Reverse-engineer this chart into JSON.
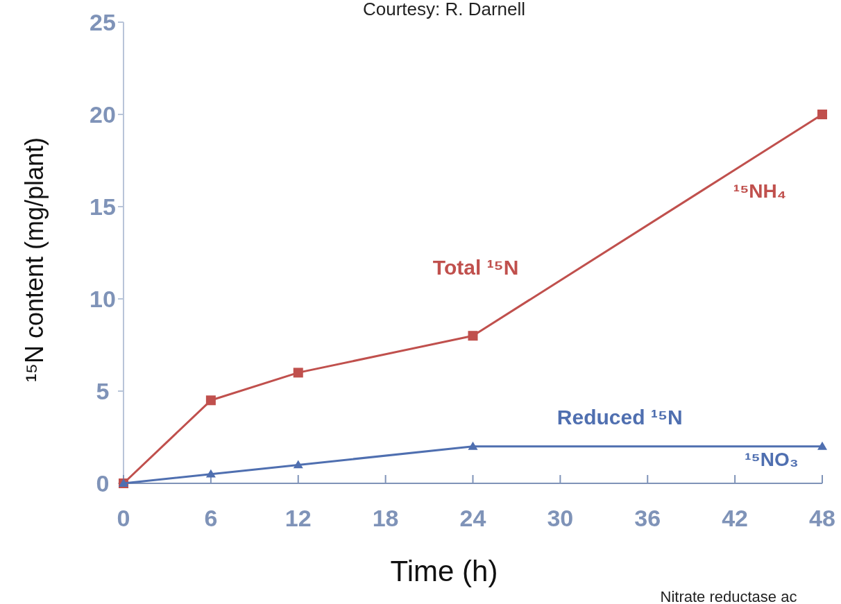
{
  "chart_data": {
    "type": "line",
    "xlabel": "Time (h)",
    "ylabel": "¹⁵N content (mg/plant)",
    "x": [
      0,
      6,
      12,
      24,
      48
    ],
    "xlim": [
      0,
      48
    ],
    "xticks": [
      0,
      6,
      12,
      18,
      24,
      30,
      36,
      42,
      48
    ],
    "ylim": [
      0,
      25
    ],
    "yticks": [
      0,
      5,
      10,
      15,
      20,
      25
    ],
    "series": [
      {
        "name": "Total ¹⁵N",
        "color": "#c0504d",
        "marker": "square",
        "values": [
          0,
          4.5,
          6,
          8,
          20
        ]
      },
      {
        "name": "Reduced ¹⁵N",
        "color": "#4f6fb0",
        "marker": "triangle",
        "values": [
          0,
          0.5,
          1,
          2,
          2
        ]
      }
    ],
    "annotations": [
      "¹⁵NH₄",
      "¹⁵NO₃",
      "Courtesy: R. Darnell",
      "Nitrate reductase ac"
    ],
    "grid": false,
    "line_style": "solid"
  }
}
